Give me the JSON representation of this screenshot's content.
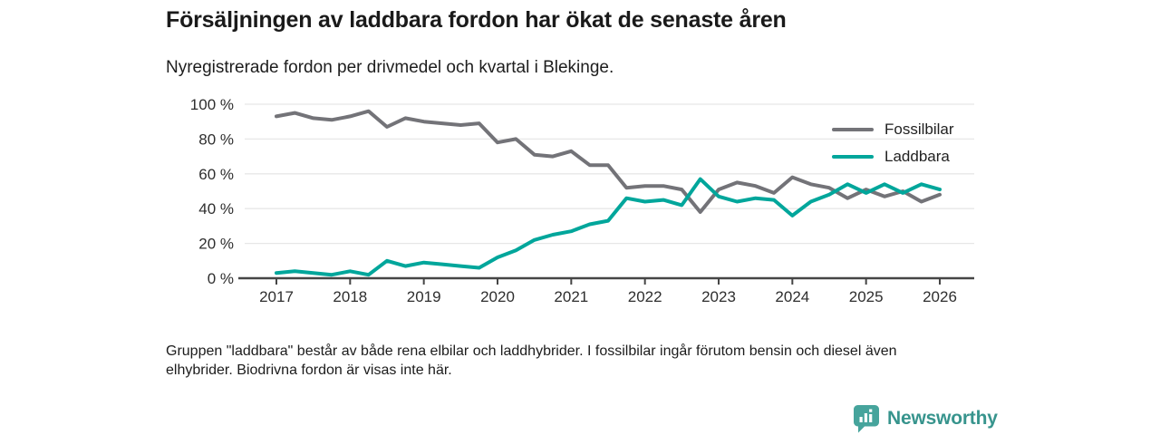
{
  "title": "Försäljningen av laddbara fordon har ökat de senaste åren",
  "subtitle": "Nyregistrerade fordon per drivmedel och kvartal i Blekinge.",
  "footnote": {
    "line1": "Gruppen \"laddbara\" består av både rena elbilar och laddhybrider. I fossilbilar ingår förutom bensin och diesel även",
    "line2": "elhybrider. Biodrivna fordon är visas inte här."
  },
  "logo": {
    "name": "Newsworthy",
    "icon": "bar-chart-speech-bubble-icon",
    "icon_color": "#46a49c",
    "text_color": "#37948d"
  },
  "colors": {
    "background": "#ffffff",
    "grid": "#e7e7e7",
    "axis": "#454545",
    "title_text": "#1a1a1a",
    "tick_text": "#2e2e2e",
    "fossil_line": "#737378",
    "laddbara_line": "#00a69b"
  },
  "chart_data": {
    "type": "line",
    "title": "Nyregistrerade fordon per drivmedel och kvartal i Blekinge",
    "x_unit": "quarterly (decimal years)",
    "xlim": [
      2017,
      2026.1
    ],
    "ylim": [
      0,
      100
    ],
    "grid": "horizontal",
    "legend_position": "top-right",
    "yticks": [
      0,
      20,
      40,
      60,
      80,
      100
    ],
    "ytick_labels": [
      "0 %",
      "20 %",
      "40 %",
      "60 %",
      "80 %",
      "100 %"
    ],
    "xtick_labels": [
      "2017",
      "2018",
      "2019",
      "2020",
      "2021",
      "2022",
      "2023",
      "2024",
      "2025",
      "2026"
    ],
    "x": [
      2017,
      2017.25,
      2017.5,
      2017.75,
      2018,
      2018.25,
      2018.5,
      2018.75,
      2019,
      2019.25,
      2019.5,
      2019.75,
      2020,
      2020.25,
      2020.5,
      2020.75,
      2021,
      2021.25,
      2021.5,
      2021.75,
      2022,
      2022.25,
      2022.5,
      2022.75,
      2023,
      2023.25,
      2023.5,
      2023.75,
      2024,
      2024.25,
      2024.5,
      2024.75,
      2025,
      2025.25,
      2025.5,
      2025.75,
      2026
    ],
    "series": [
      {
        "name": "Fossilbilar",
        "color": "#737378",
        "values": [
          93,
          95,
          92,
          91,
          93,
          96,
          87,
          92,
          90,
          89,
          88,
          89,
          78,
          80,
          71,
          70,
          73,
          65,
          65,
          52,
          53,
          53,
          51,
          38,
          51,
          55,
          53,
          49,
          58,
          54,
          52,
          46,
          51,
          47,
          50,
          44,
          48
        ]
      },
      {
        "name": "Laddbara",
        "color": "#00a69b",
        "values": [
          3,
          4,
          3,
          2,
          4,
          2,
          10,
          7,
          9,
          8,
          7,
          6,
          12,
          16,
          22,
          25,
          27,
          31,
          33,
          46,
          44,
          45,
          42,
          57,
          47,
          44,
          46,
          45,
          36,
          44,
          48,
          54,
          49,
          54,
          49,
          54,
          51
        ]
      }
    ]
  }
}
